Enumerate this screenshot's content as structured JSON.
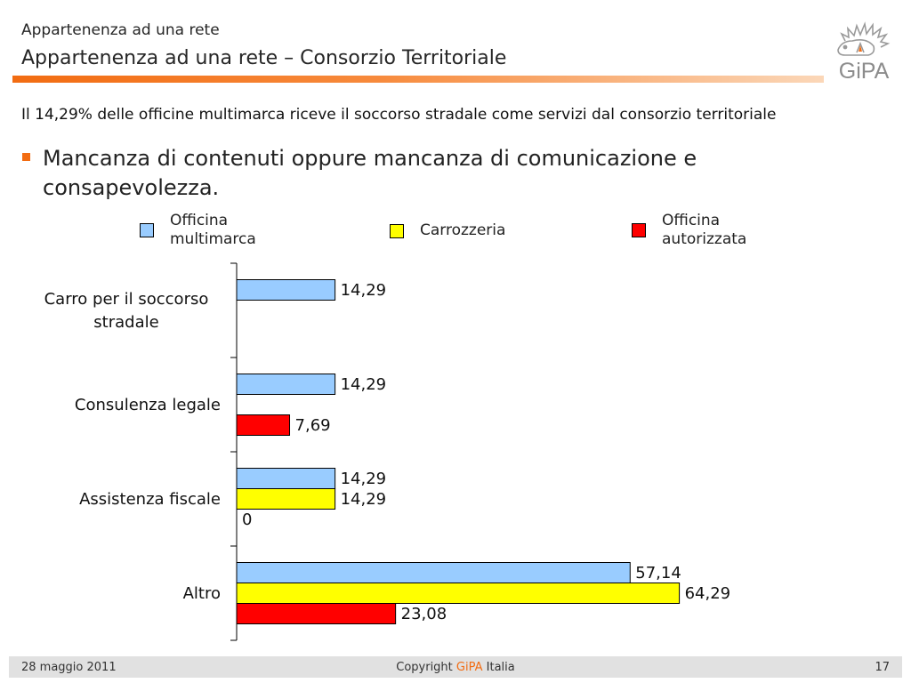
{
  "header": {
    "supertitle": "Appartenenza ad una rete",
    "title": "Appartenenza ad una rete – Consorzio Territoriale"
  },
  "statement": "Il 14,29% delle officine multimarca riceve il soccorso stradale come servizi dal consorzio territoriale",
  "bullet_text": "Mancanza di contenuti oppure mancanza di comunicazione e consapevolezza.",
  "colors": {
    "accent": "#f26c12",
    "officina_multimarca": "#99ccff",
    "carrozzeria": "#ffff00",
    "officina_autorizzata": "#ff0000"
  },
  "logo": {
    "icon": "gipa-logo-icon",
    "text": "GiPA"
  },
  "chart_data": {
    "type": "bar",
    "orientation": "horizontal",
    "categories": [
      "Carro per il soccorso stradale",
      "Consulenza legale",
      "Assistenza fiscale",
      "Altro"
    ],
    "series": [
      {
        "name": "Officina multimarca",
        "color": "#99ccff",
        "values": [
          14.29,
          14.29,
          14.29,
          57.14
        ],
        "labels": [
          "14,29",
          "14,29",
          "14,29",
          "57,14"
        ]
      },
      {
        "name": "Carrozzeria",
        "color": "#ffff00",
        "values": [
          null,
          null,
          14.29,
          64.29
        ],
        "labels": [
          null,
          null,
          "14,29",
          "64,29"
        ]
      },
      {
        "name": "Officina autorizzata",
        "color": "#ff0000",
        "values": [
          null,
          7.69,
          0,
          23.08
        ],
        "labels": [
          null,
          "7,69",
          "0",
          "23,08"
        ]
      }
    ],
    "xlim": [
      0,
      100
    ],
    "grid": false,
    "legend": "top"
  },
  "footer": {
    "date": "28 maggio 2011",
    "copyright_prefix": "Copyright ",
    "copyright_brand": "GiPA",
    "copyright_suffix": " Italia",
    "page": "17"
  }
}
